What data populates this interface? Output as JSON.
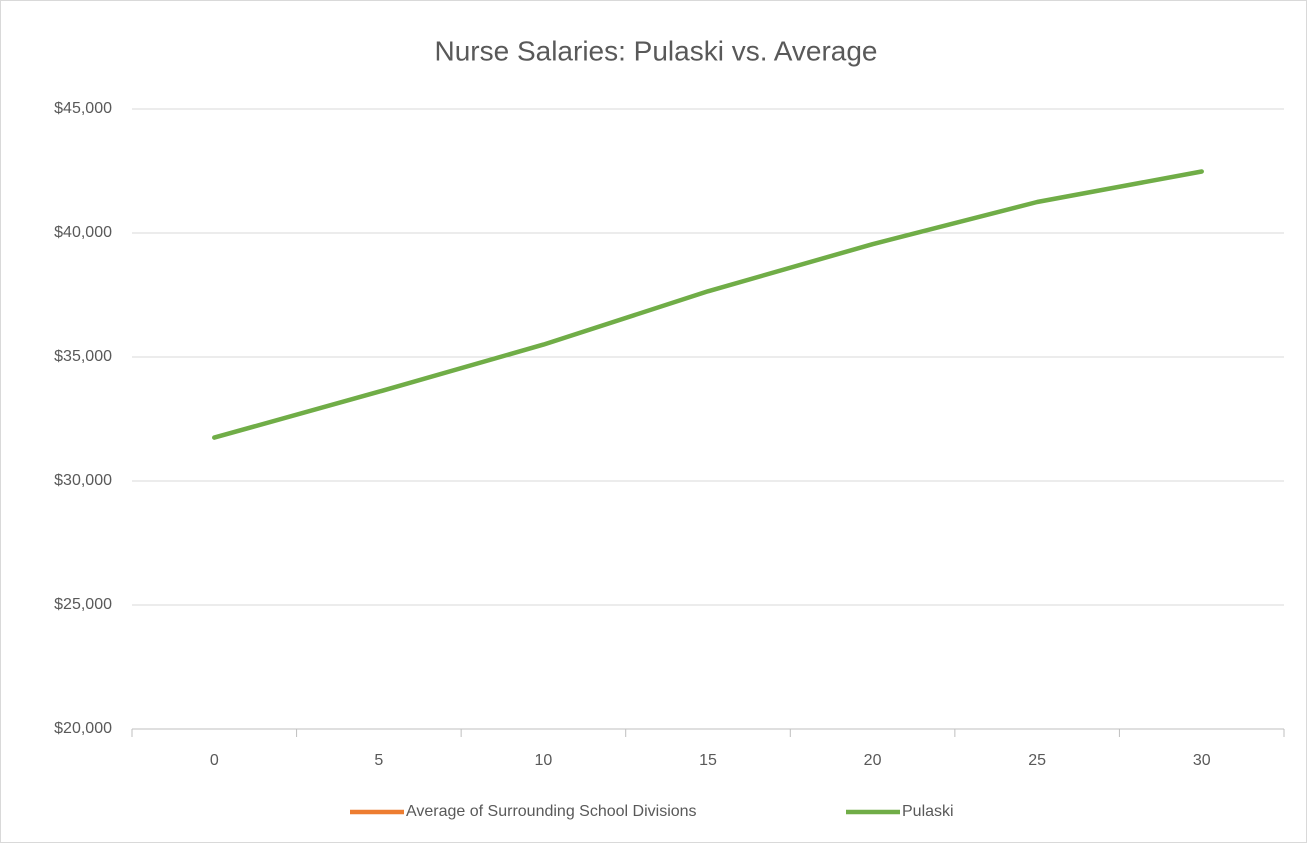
{
  "chart_data": {
    "type": "line",
    "title": "Nurse Salaries: Pulaski vs. Average",
    "categories": [
      0,
      5,
      10,
      15,
      20,
      25,
      30
    ],
    "series": [
      {
        "name": "Average of Surrounding School Divisions",
        "color": "#ed7d31",
        "values": [
          null,
          null,
          null,
          null,
          null,
          null,
          null
        ]
      },
      {
        "name": "Pulaski",
        "color": "#70ad47",
        "values": [
          31750,
          33600,
          35500,
          37650,
          39550,
          41250,
          42480
        ]
      }
    ],
    "ylim": [
      20000,
      45000
    ],
    "yticks": [
      {
        "value": 20000,
        "label": "$20,000"
      },
      {
        "value": 25000,
        "label": "$25,000"
      },
      {
        "value": 30000,
        "label": "$30,000"
      },
      {
        "value": 35000,
        "label": "$35,000"
      },
      {
        "value": 40000,
        "label": "$40,000"
      },
      {
        "value": 45000,
        "label": "$45,000"
      }
    ],
    "grid": true,
    "legend": "bottom"
  }
}
